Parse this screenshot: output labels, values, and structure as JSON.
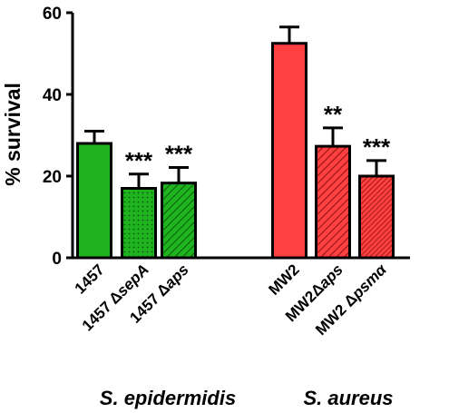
{
  "chart_data": {
    "type": "bar",
    "ylabel": "% survival",
    "ylim": [
      0,
      60
    ],
    "yticks": [
      0,
      20,
      40,
      60
    ],
    "grid": false,
    "bars": [
      {
        "category": "1457",
        "label_parts": [
          {
            "t": "1457",
            "italic": false
          }
        ],
        "value": 28,
        "error": 3,
        "significance": "",
        "color": "#1fb31f",
        "pattern": "solid"
      },
      {
        "category": "1457 ΔsepA",
        "label_parts": [
          {
            "t": "1457 Δ",
            "italic": false
          },
          {
            "t": "sepA",
            "italic": true
          }
        ],
        "value": 17,
        "error": 3.5,
        "significance": "***",
        "color": "#1fb31f",
        "pattern": "dots"
      },
      {
        "category": "1457 Δaps",
        "label_parts": [
          {
            "t": "1457 Δ",
            "italic": false
          },
          {
            "t": "aps",
            "italic": true
          }
        ],
        "value": 18.3,
        "error": 3.8,
        "significance": "***",
        "color": "#1fb31f",
        "pattern": "hatch"
      },
      {
        "category": "MW2",
        "label_parts": [
          {
            "t": "MW2",
            "italic": false
          }
        ],
        "value": 52.5,
        "error": 4,
        "significance": "",
        "color": "#ff4040",
        "pattern": "solid"
      },
      {
        "category": "MW2Δaps",
        "label_parts": [
          {
            "t": "MW2Δ",
            "italic": false
          },
          {
            "t": "aps",
            "italic": true
          }
        ],
        "value": 27.3,
        "error": 4.5,
        "significance": "**",
        "color": "#ff4040",
        "pattern": "hatch"
      },
      {
        "category": "MW2 Δpsmα",
        "label_parts": [
          {
            "t": "MW2 Δ",
            "italic": false
          },
          {
            "t": "psmα",
            "italic": true
          }
        ],
        "value": 20,
        "error": 3.8,
        "significance": "***",
        "color": "#ff4040",
        "pattern": "hatch-dense"
      }
    ],
    "groups": [
      {
        "name": "S. epidermidis"
      },
      {
        "name": "S. aureus"
      }
    ]
  }
}
